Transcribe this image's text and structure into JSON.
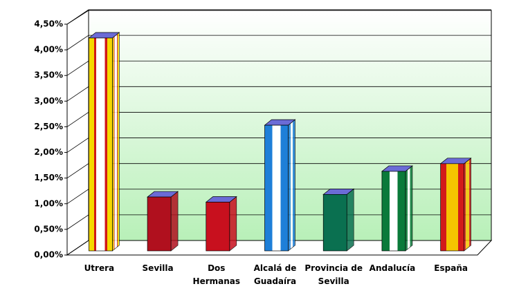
{
  "chart_data": {
    "type": "bar",
    "categories": [
      "Utrera",
      "Sevilla",
      "Dos Hermanas",
      "Alcalá de Guadaíra",
      "Provincia de Sevilla",
      "Andalucía",
      "España"
    ],
    "values": [
      4.15,
      1.05,
      0.95,
      2.45,
      1.1,
      1.55,
      1.7
    ],
    "ylim": [
      0,
      4.5
    ],
    "yticks": [
      {
        "value": 0,
        "label": "0,00%"
      },
      {
        "value": 0.5,
        "label": "0,50%"
      },
      {
        "value": 1,
        "label": "1,00%"
      },
      {
        "value": 1.5,
        "label": "1,50%"
      },
      {
        "value": 2,
        "label": "2,00%"
      },
      {
        "value": 2.5,
        "label": "2,50%"
      },
      {
        "value": 3,
        "label": "3,00%"
      },
      {
        "value": 3.5,
        "label": "3,50%"
      },
      {
        "value": 4,
        "label": "4,00%"
      },
      {
        "value": 4.5,
        "label": "4,50%"
      }
    ],
    "grid": true
  }
}
